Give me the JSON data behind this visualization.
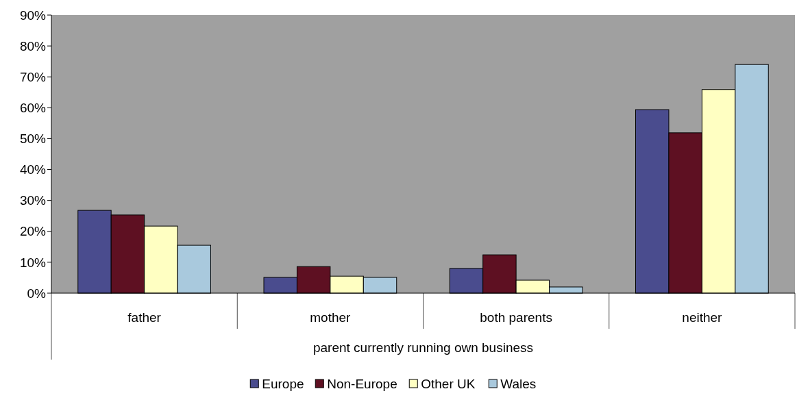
{
  "chart_data": {
    "type": "bar",
    "xlabel": "parent currently running own business",
    "categories": [
      "father",
      "mother",
      "both parents",
      "neither"
    ],
    "series": [
      {
        "name": "Europe",
        "color": "#4a4c8e",
        "values": [
          26.8,
          5.1,
          8.0,
          59.4
        ]
      },
      {
        "name": "Non-Europe",
        "color": "#5e1022",
        "values": [
          25.3,
          8.6,
          12.4,
          51.9
        ]
      },
      {
        "name": "Other UK",
        "color": "#ffffc2",
        "values": [
          21.7,
          5.5,
          4.2,
          65.9
        ]
      },
      {
        "name": "Wales",
        "color": "#a9c9dd",
        "values": [
          15.5,
          5.1,
          2.0,
          74.0
        ]
      }
    ],
    "ylim": [
      0,
      90
    ],
    "yticks": [
      {
        "value": 0,
        "label": "0%"
      },
      {
        "value": 10,
        "label": "10%"
      },
      {
        "value": 20,
        "label": "20%"
      },
      {
        "value": 30,
        "label": "30%"
      },
      {
        "value": 40,
        "label": "40%"
      },
      {
        "value": 50,
        "label": "50%"
      },
      {
        "value": 60,
        "label": "60%"
      },
      {
        "value": 70,
        "label": "70%"
      },
      {
        "value": 80,
        "label": "80%"
      },
      {
        "value": 90,
        "label": "90%"
      }
    ],
    "grid": false,
    "legend": "bottom"
  }
}
